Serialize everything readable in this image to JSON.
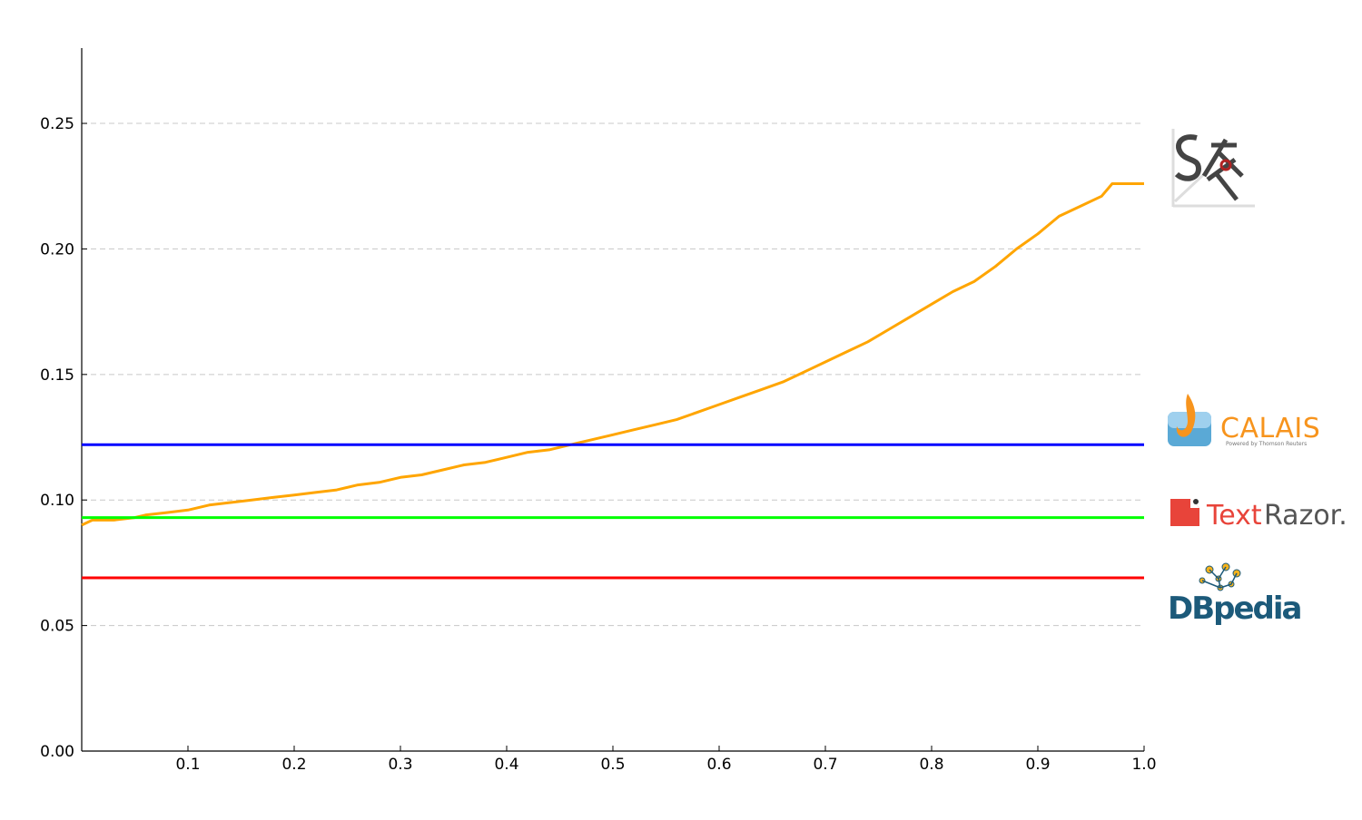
{
  "chart_data": {
    "type": "line",
    "title": "",
    "xlabel": "",
    "ylabel": "",
    "xlim": [
      0.0,
      1.0
    ],
    "ylim": [
      0.0,
      0.28
    ],
    "grid": "horizontal-dashed",
    "x_ticks": [
      "0.1",
      "0.2",
      "0.3",
      "0.4",
      "0.5",
      "0.6",
      "0.7",
      "0.8",
      "0.9",
      "1.0"
    ],
    "x_tick_values": [
      0.1,
      0.2,
      0.3,
      0.4,
      0.5,
      0.6,
      0.7,
      0.8,
      0.9,
      1.0
    ],
    "y_ticks": [
      "0.00",
      "0.05",
      "0.10",
      "0.15",
      "0.20",
      "0.25"
    ],
    "y_tick_values": [
      0.0,
      0.05,
      0.1,
      0.15,
      0.2,
      0.25
    ],
    "series": [
      {
        "color": "#ffa500",
        "x": [
          0.0,
          0.01,
          0.03,
          0.05,
          0.06,
          0.08,
          0.1,
          0.12,
          0.14,
          0.16,
          0.18,
          0.2,
          0.22,
          0.24,
          0.26,
          0.28,
          0.3,
          0.32,
          0.34,
          0.36,
          0.38,
          0.4,
          0.42,
          0.44,
          0.46,
          0.48,
          0.5,
          0.52,
          0.54,
          0.56,
          0.58,
          0.6,
          0.62,
          0.64,
          0.66,
          0.68,
          0.7,
          0.72,
          0.74,
          0.76,
          0.78,
          0.8,
          0.82,
          0.84,
          0.86,
          0.88,
          0.9,
          0.92,
          0.94,
          0.96,
          0.97,
          1.0
        ],
        "values": [
          0.09,
          0.092,
          0.092,
          0.093,
          0.094,
          0.095,
          0.096,
          0.098,
          0.099,
          0.1,
          0.101,
          0.102,
          0.103,
          0.104,
          0.106,
          0.107,
          0.109,
          0.11,
          0.112,
          0.114,
          0.115,
          0.117,
          0.119,
          0.12,
          0.122,
          0.124,
          0.126,
          0.128,
          0.13,
          0.132,
          0.135,
          0.138,
          0.141,
          0.144,
          0.147,
          0.151,
          0.155,
          0.159,
          0.163,
          0.168,
          0.173,
          0.178,
          0.183,
          0.187,
          0.193,
          0.2,
          0.206,
          0.213,
          0.217,
          0.221,
          0.226,
          0.226
        ]
      },
      {
        "color": "#0000ff",
        "x": [
          0.0,
          1.0
        ],
        "values": [
          0.122,
          0.122
        ]
      },
      {
        "color": "#00ff00",
        "x": [
          0.0,
          1.0
        ],
        "values": [
          0.093,
          0.093
        ]
      },
      {
        "color": "#ff0000",
        "x": [
          0.0,
          1.0
        ],
        "values": [
          0.069,
          0.069
        ]
      }
    ],
    "legend": {
      "placement": "right",
      "entries": [
        {
          "kind": "logo",
          "icon": "sk-logo-icon",
          "series_color": "#ffa500"
        },
        {
          "kind": "logo",
          "icon": "calais-logo-icon",
          "text": "CALAIS",
          "subtext": "Powered by Thomson Reuters",
          "series_color": "#0000ff"
        },
        {
          "kind": "logo",
          "icon": "textrazor-logo-icon",
          "text_a": "Text",
          "text_b": "Razor.",
          "series_color": "#00ff00"
        },
        {
          "kind": "logo",
          "icon": "dbpedia-logo-icon",
          "text": "DBpedia",
          "series_color": "#ff0000"
        }
      ]
    }
  }
}
